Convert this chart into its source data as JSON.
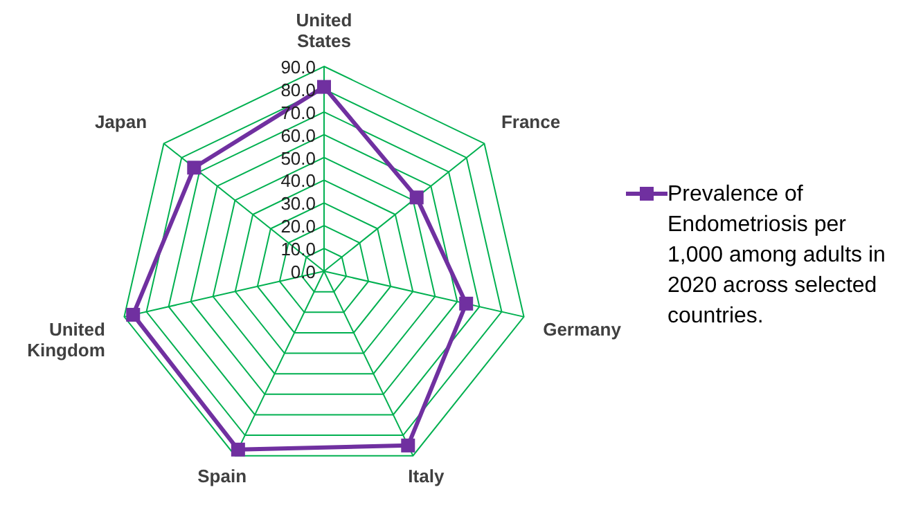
{
  "chart_data": {
    "type": "radar",
    "categories": [
      "United States",
      "France",
      "Germany",
      "Italy",
      "Spain",
      "United Kingdom",
      "Japan"
    ],
    "series": [
      {
        "name": "Prevalence of Endometriosis per 1,000 among adults in 2020  across selected countries.",
        "color": "#7030a0",
        "values": [
          81,
          52,
          64,
          85,
          87,
          86,
          73
        ]
      }
    ],
    "ylim": [
      0,
      90
    ],
    "yticks": [
      {
        "value": 0,
        "label": "0.0"
      },
      {
        "value": 10,
        "label": "10.0"
      },
      {
        "value": 20,
        "label": "20.0"
      },
      {
        "value": 30,
        "label": "30.0"
      },
      {
        "value": 40,
        "label": "40.0"
      },
      {
        "value": 50,
        "label": "50.0"
      },
      {
        "value": 60,
        "label": "60.0"
      },
      {
        "value": 70,
        "label": "70.0"
      },
      {
        "value": 80,
        "label": "80.0"
      },
      {
        "value": 90,
        "label": "90.0"
      }
    ],
    "grid": true,
    "legend": "right",
    "marker": "square",
    "line_style": "solid"
  }
}
